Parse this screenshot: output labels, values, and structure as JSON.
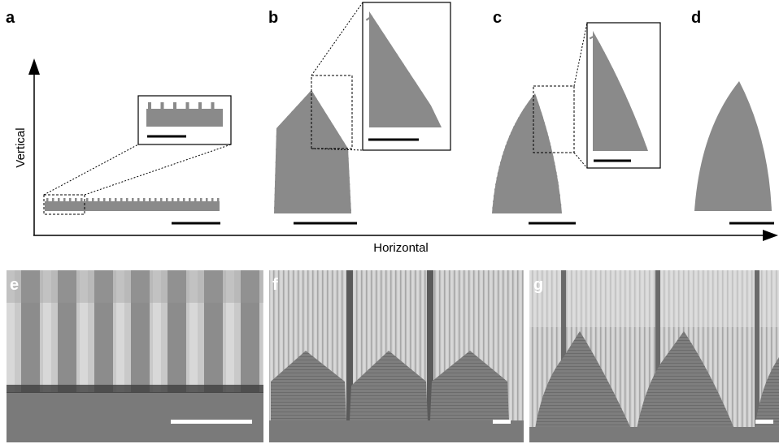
{
  "panels": {
    "a": "a",
    "b": "b",
    "c": "c",
    "d": "d",
    "e": "e",
    "f": "f",
    "g": "g"
  },
  "axes": {
    "vertical": "Vertical",
    "horizontal": "Horizontal"
  },
  "colors": {
    "structure_gray": "#8a8a8a",
    "background": "#ffffff",
    "ink": "#000000",
    "sem_light": "#cfcfcf",
    "sem_mid": "#8f8f8f",
    "sem_dark": "#5e5e5e"
  }
}
